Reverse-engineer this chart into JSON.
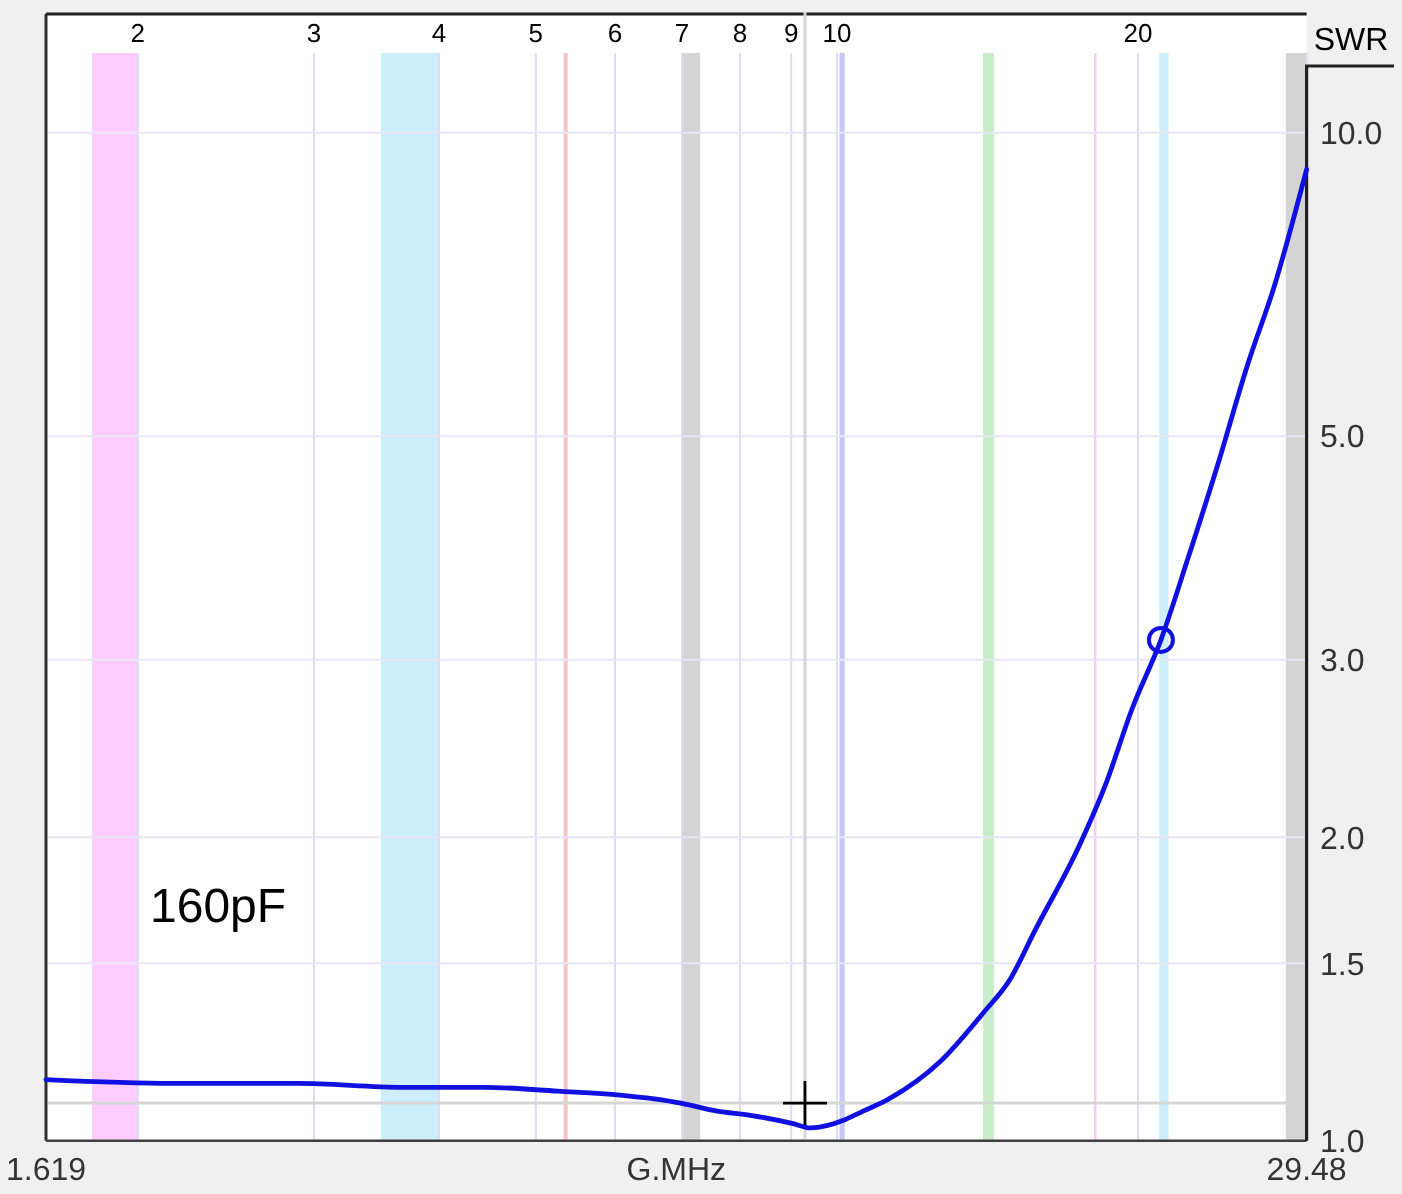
{
  "chart_data": {
    "type": "line",
    "x2label": "G.MHz",
    "ylabel": "SWR",
    "annotations": [
      "160pF"
    ],
    "log": "xy",
    "xlim": [
      1.619,
      29.48
    ],
    "xticks": [
      2,
      3,
      4,
      5,
      6,
      7,
      8,
      9,
      10,
      20
    ],
    "x2lim": [
      1.619,
      29.48
    ],
    "x2ticks": [
      1.619,
      29.48
    ],
    "ylim": [
      1,
      12
    ],
    "yticks": [
      {
        "value": 1,
        "label": "1.0"
      },
      1.5,
      {
        "value": 2,
        "label": "2.0"
      },
      {
        "value": 3,
        "label": "3.0"
      },
      {
        "value": 5,
        "label": "5.0"
      },
      {
        "value": 10,
        "label": "10.0"
      }
    ],
    "grid": true,
    "bands": [
      {
        "axis": "x",
        "from": 1.8,
        "to": 2.0,
        "color": "#ffccff"
      },
      {
        "axis": "x",
        "from": 3.5,
        "to": 4.0,
        "color": "#cdeefc"
      },
      {
        "axis": "x",
        "from": 5.33,
        "to": 5.38,
        "color": "#f6c4c4"
      },
      {
        "axis": "x",
        "from": 7.0,
        "to": 7.3,
        "color": "#d4d4d4"
      },
      {
        "axis": "x",
        "from": 10.06,
        "to": 10.18,
        "color": "#c8c8f6"
      },
      {
        "axis": "x",
        "from": 14.0,
        "to": 14.35,
        "color": "#c8ecc8"
      },
      {
        "axis": "x",
        "from": 18.07,
        "to": 18.17,
        "color": "#f8cdf0"
      },
      {
        "axis": "x",
        "from": 21.0,
        "to": 21.45,
        "color": "#cdeefc"
      },
      {
        "axis": "x",
        "from": 28.1,
        "to": 29.48,
        "color": "#d4d4d4"
      }
    ],
    "ref_lines": [
      {
        "axis": "x",
        "value": 9.29,
        "color": "#d6d6d6"
      },
      {
        "axis": "y",
        "value": 1.09,
        "color": "#d6d6d6"
      }
    ],
    "series": [
      {
        "color": "#1010e0",
        "x": [
          1.619,
          2.17,
          2.89,
          3.68,
          4.44,
          5.26,
          6.07,
          6.98,
          7.59,
          8.19,
          9.04,
          9.41,
          10.2,
          10.62,
          11.26,
          12.7,
          14.01,
          14.92,
          15.74,
          17.5,
          18.57,
          19.72,
          21.08,
          22.41,
          23.97,
          25.74,
          27.41,
          29.48
        ],
        "values": [
          1.15,
          1.14,
          1.14,
          1.13,
          1.13,
          1.12,
          1.11,
          1.09,
          1.07,
          1.06,
          1.04,
          1.03,
          1.05,
          1.07,
          1.1,
          1.2,
          1.34,
          1.45,
          1.61,
          1.97,
          2.26,
          2.68,
          3.14,
          3.77,
          4.65,
          5.89,
          7.08,
          9.2
        ]
      },
      {
        "type": "scatter",
        "marker": "cross",
        "color": "#000000",
        "x": [
          9.29
        ],
        "values": [
          1.09
        ]
      },
      {
        "type": "scatter",
        "marker": "circle",
        "color": "#1010e0",
        "x": [
          21.08
        ],
        "values": [
          3.14
        ]
      }
    ]
  }
}
